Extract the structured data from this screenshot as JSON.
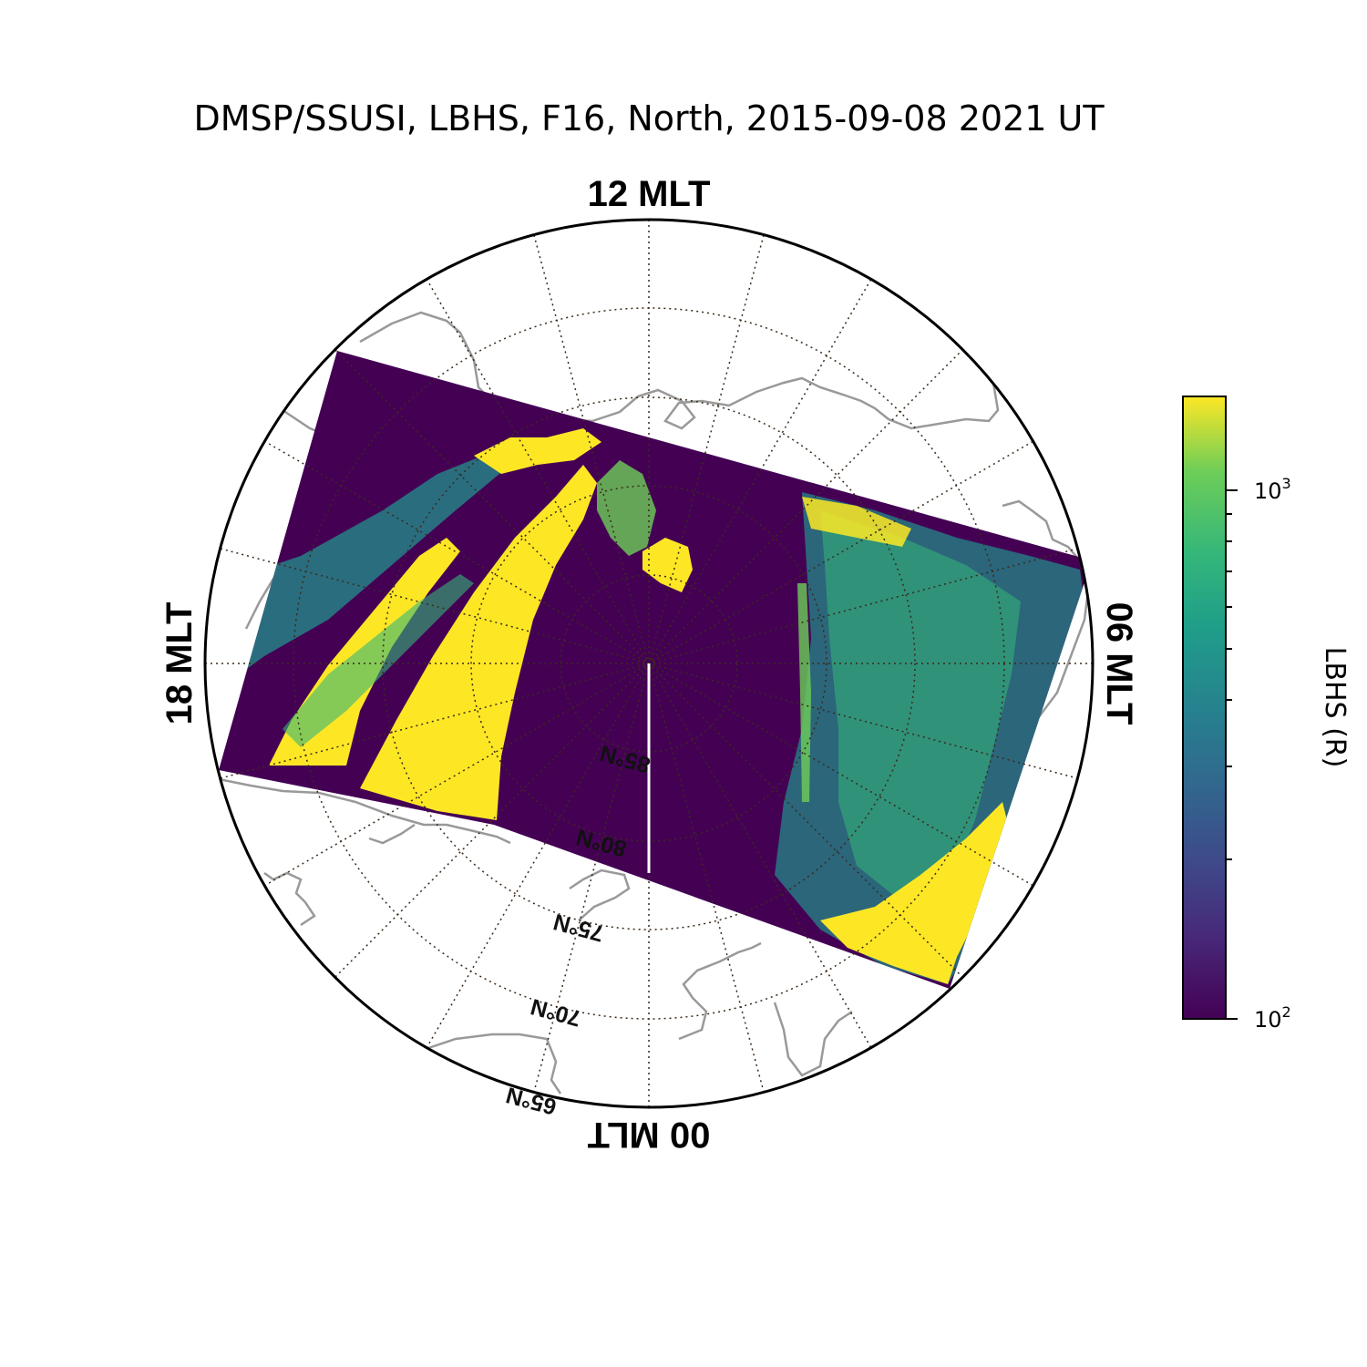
{
  "title": "DMSP/SSUSI, LBHS, F16, North, 2015-09-08 2021 UT",
  "mlt_labels": {
    "top": "12 MLT",
    "left": "18 MLT",
    "right": "06 MLT",
    "bottom": "00 MLT"
  },
  "latitude_labels": [
    "65°N",
    "70°N",
    "75°N",
    "80°N",
    "85°N"
  ],
  "colorbar": {
    "label": "LBHS (R)",
    "scale": "log",
    "min": 100,
    "max": 1500,
    "ticks": [
      {
        "value": 1000,
        "base": "10",
        "exp": "3"
      },
      {
        "value": 100,
        "base": "10",
        "exp": "2"
      }
    ],
    "colormap": "viridis"
  },
  "colors": {
    "low": "#440154",
    "mid": "#21918c",
    "high": "#fde725",
    "grid": "#3a2a1a",
    "coastline": "#999999"
  },
  "chart_data": {
    "type": "heatmap",
    "projection": "polar magnetic latitude / local time, north",
    "r_range_deg": [
      65,
      90
    ],
    "mlt_orientation": "12 top, 06 right, 00 bottom, 18 left",
    "value_units": "R",
    "value_range": [
      100,
      1500
    ],
    "grid": true,
    "latitude_circles": [
      65,
      70,
      75,
      80,
      85
    ],
    "meridian_step_hours": 2
  }
}
